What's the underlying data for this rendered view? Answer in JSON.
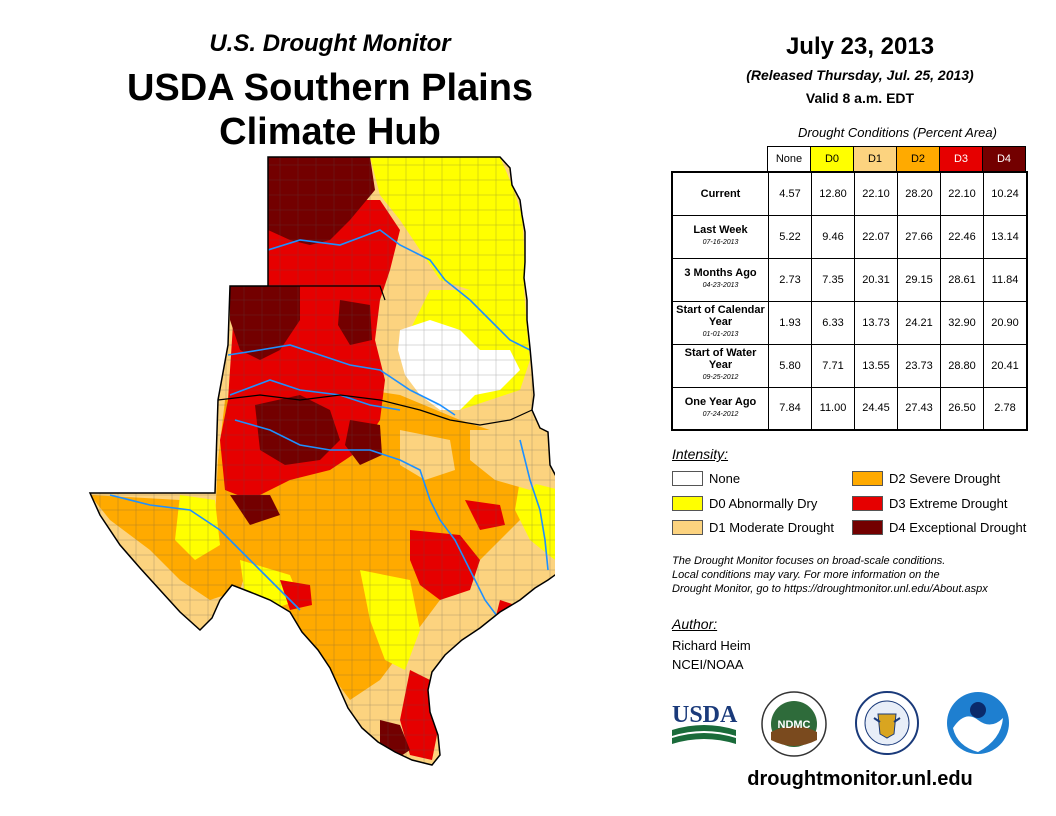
{
  "header": {
    "subtitle": "U.S. Drought Monitor",
    "title_line1": "USDA Southern Plains",
    "title_line2": "Climate Hub"
  },
  "info": {
    "date": "July 23, 2013",
    "released": "(Released Thursday, Jul. 25, 2013)",
    "valid": "Valid 8 a.m. EDT"
  },
  "table": {
    "title": "Drought Conditions (Percent Area)",
    "columns": [
      "None",
      "D0",
      "D1",
      "D2",
      "D3",
      "D4"
    ],
    "column_colors": [
      "#ffffff",
      "#ffff00",
      "#fcd37f",
      "#ffaa00",
      "#e60000",
      "#730000"
    ],
    "rows": [
      {
        "label": "Current",
        "date": "",
        "values": [
          "4.57",
          "12.80",
          "22.10",
          "28.20",
          "22.10",
          "10.24"
        ]
      },
      {
        "label": "Last Week",
        "date": "07-16-2013",
        "values": [
          "5.22",
          "9.46",
          "22.07",
          "27.66",
          "22.46",
          "13.14"
        ]
      },
      {
        "label": "3 Months Ago",
        "date": "04-23-2013",
        "values": [
          "2.73",
          "7.35",
          "20.31",
          "29.15",
          "28.61",
          "11.84"
        ]
      },
      {
        "label": "Start of Calendar Year",
        "date": "01-01-2013",
        "values": [
          "1.93",
          "6.33",
          "13.73",
          "24.21",
          "32.90",
          "20.90"
        ]
      },
      {
        "label": "Start of Water Year",
        "date": "09-25-2012",
        "values": [
          "5.80",
          "7.71",
          "13.55",
          "23.73",
          "28.80",
          "20.41"
        ]
      },
      {
        "label": "One Year Ago",
        "date": "07-24-2012",
        "values": [
          "7.84",
          "11.00",
          "24.45",
          "27.43",
          "26.50",
          "2.78"
        ]
      }
    ]
  },
  "legend": {
    "title": "Intensity:",
    "items": [
      {
        "label": "None",
        "color": "#ffffff"
      },
      {
        "label": "D0 Abnormally Dry",
        "color": "#ffff00"
      },
      {
        "label": "D1 Moderate Drought",
        "color": "#fcd37f"
      },
      {
        "label": "D2 Severe Drought",
        "color": "#ffaa00"
      },
      {
        "label": "D3 Extreme Drought",
        "color": "#e60000"
      },
      {
        "label": "D4 Exceptional Drought",
        "color": "#730000"
      }
    ]
  },
  "note": {
    "line1": "The Drought Monitor focuses on broad-scale conditions.",
    "line2": "Local conditions may vary. For more information on the",
    "line3": "Drought Monitor, go to https://droughtmonitor.unl.edu/About.aspx"
  },
  "author": {
    "title": "Author:",
    "name": "Richard Heim",
    "org": "NCEI/NOAA"
  },
  "logos": {
    "usda": "USDA",
    "ndmc": "NDMC"
  },
  "footer": {
    "url": "droughtmonitor.unl.edu"
  }
}
